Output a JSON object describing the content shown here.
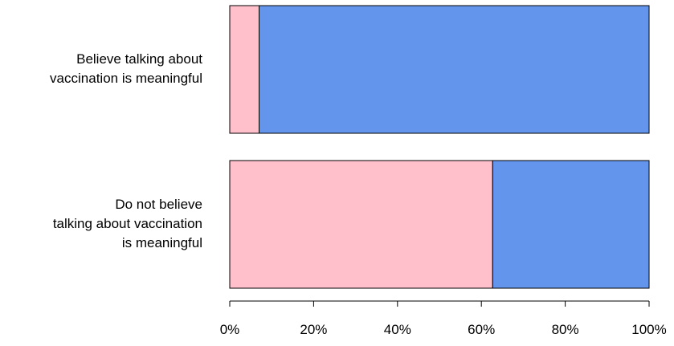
{
  "chart_data": {
    "type": "bar",
    "orientation": "horizontal",
    "stacked": true,
    "categories": [
      [
        "Believe talking about",
        "vaccination is meaningful"
      ],
      [
        "Do not believe",
        "talking about vaccination",
        "is meaningful"
      ]
    ],
    "series": [
      {
        "values": [
          0.07,
          0.627
        ],
        "color": "#FFC0CB"
      },
      {
        "values": [
          0.93,
          0.373
        ],
        "color": "#6495ED"
      }
    ],
    "xlim": [
      0,
      1
    ],
    "x_ticks": [
      0,
      0.2,
      0.4,
      0.6,
      0.8,
      1.0
    ],
    "x_tick_labels": [
      "0%",
      "20%",
      "40%",
      "60%",
      "80%",
      "100%"
    ],
    "grid": false,
    "legend": "none",
    "title": "",
    "xlabel": "",
    "ylabel": ""
  }
}
